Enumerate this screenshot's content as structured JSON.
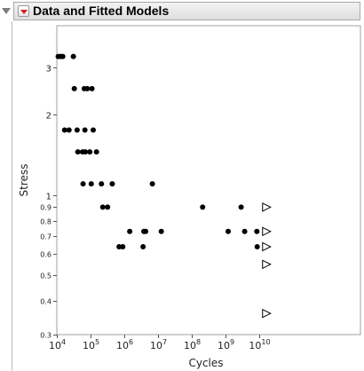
{
  "report": {
    "title": "Data and Fitted Models"
  },
  "icons": {
    "disclosure": "disclosure-triangle-down-icon",
    "menu": "red-triangle-menu-icon"
  },
  "colors": {
    "points": "#000000",
    "censored": "#000000",
    "frame": "#a0a0a0"
  },
  "chart_data": {
    "type": "scatter",
    "title": "",
    "xlabel": "Cycles",
    "ylabel": "Stress",
    "xscale": "log",
    "yscale": "log",
    "xlim": [
      10000,
      10000000000000.0
    ],
    "ylim": [
      0.3,
      4.3
    ],
    "grid": false,
    "x_ticks": [
      {
        "value": 10000,
        "base": "10",
        "exp": "4"
      },
      {
        "value": 100000,
        "base": "10",
        "exp": "5"
      },
      {
        "value": 1000000,
        "base": "10",
        "exp": "6"
      },
      {
        "value": 10000000,
        "base": "10",
        "exp": "7"
      },
      {
        "value": 100000000,
        "base": "10",
        "exp": "8"
      },
      {
        "value": 1000000000,
        "base": "10",
        "exp": "9"
      },
      {
        "value": 10000000000,
        "base": "10",
        "exp": "10"
      }
    ],
    "y_ticks": [
      {
        "value": 0.3,
        "label": "0.3"
      },
      {
        "value": 0.4,
        "label": "0.4"
      },
      {
        "value": 0.5,
        "label": "0.5"
      },
      {
        "value": 0.6,
        "label": "0.6"
      },
      {
        "value": 0.7,
        "label": "0.7"
      },
      {
        "value": 0.8,
        "label": "0.8"
      },
      {
        "value": 0.9,
        "label": "0.9"
      },
      {
        "value": 1,
        "label": "1"
      },
      {
        "value": 2,
        "label": "2"
      },
      {
        "value": 3,
        "label": "3"
      }
    ],
    "series": [
      {
        "marker": "circle",
        "points": [
          {
            "x": 11000,
            "y": 3.3
          },
          {
            "x": 13000,
            "y": 3.3
          },
          {
            "x": 15000,
            "y": 3.3
          },
          {
            "x": 31000,
            "y": 3.3
          },
          {
            "x": 17000,
            "y": 1.75
          },
          {
            "x": 23000,
            "y": 1.75
          },
          {
            "x": 40000,
            "y": 1.75
          },
          {
            "x": 68000,
            "y": 1.75
          },
          {
            "x": 120000,
            "y": 1.75
          },
          {
            "x": 33000,
            "y": 2.5
          },
          {
            "x": 65000,
            "y": 2.5
          },
          {
            "x": 80000,
            "y": 2.5
          },
          {
            "x": 110000,
            "y": 2.5
          },
          {
            "x": 42000,
            "y": 1.45
          },
          {
            "x": 58000,
            "y": 1.45
          },
          {
            "x": 70000,
            "y": 1.45
          },
          {
            "x": 95000,
            "y": 1.45
          },
          {
            "x": 150000,
            "y": 1.45
          },
          {
            "x": 60000,
            "y": 1.1
          },
          {
            "x": 105000,
            "y": 1.1
          },
          {
            "x": 210000,
            "y": 1.1
          },
          {
            "x": 440000,
            "y": 1.1
          },
          {
            "x": 6800000,
            "y": 1.1
          },
          {
            "x": 230000,
            "y": 0.9
          },
          {
            "x": 320000,
            "y": 0.9
          },
          {
            "x": 1450000,
            "y": 0.73
          },
          {
            "x": 3800000,
            "y": 0.73
          },
          {
            "x": 4300000,
            "y": 0.73
          },
          {
            "x": 12500000,
            "y": 0.73
          },
          {
            "x": 700000,
            "y": 0.64
          },
          {
            "x": 900000,
            "y": 0.64
          },
          {
            "x": 3600000,
            "y": 0.64
          },
          {
            "x": 210000000,
            "y": 0.9
          },
          {
            "x": 1200000000,
            "y": 0.73
          },
          {
            "x": 2900000000,
            "y": 0.9
          },
          {
            "x": 3700000000,
            "y": 0.73
          },
          {
            "x": 8500000000,
            "y": 0.73
          },
          {
            "x": 8700000000,
            "y": 0.64
          }
        ]
      },
      {
        "marker": "triangle-right-open",
        "points": [
          {
            "x": 16000000000,
            "y": 0.9
          },
          {
            "x": 16000000000,
            "y": 0.73
          },
          {
            "x": 16000000000,
            "y": 0.64
          },
          {
            "x": 16000000000,
            "y": 0.55
          },
          {
            "x": 16000000000,
            "y": 0.36
          }
        ]
      }
    ]
  }
}
